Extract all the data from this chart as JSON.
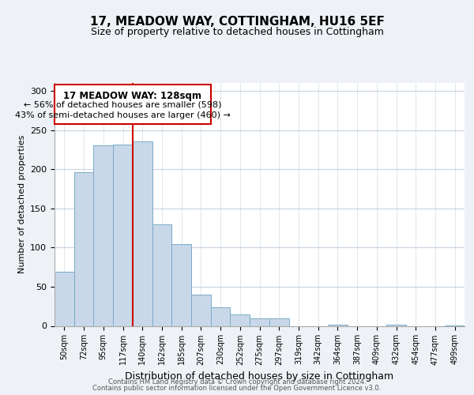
{
  "title": "17, MEADOW WAY, COTTINGHAM, HU16 5EF",
  "subtitle": "Size of property relative to detached houses in Cottingham",
  "xlabel": "Distribution of detached houses by size in Cottingham",
  "ylabel": "Number of detached properties",
  "categories": [
    "50sqm",
    "72sqm",
    "95sqm",
    "117sqm",
    "140sqm",
    "162sqm",
    "185sqm",
    "207sqm",
    "230sqm",
    "252sqm",
    "275sqm",
    "297sqm",
    "319sqm",
    "342sqm",
    "364sqm",
    "387sqm",
    "409sqm",
    "432sqm",
    "454sqm",
    "477sqm",
    "499sqm"
  ],
  "values": [
    69,
    196,
    230,
    231,
    235,
    130,
    104,
    40,
    24,
    15,
    10,
    10,
    0,
    0,
    2,
    0,
    0,
    2,
    0,
    0,
    1
  ],
  "bar_color": "#c8d8e8",
  "bar_edge_color": "#7aaac8",
  "vline_color": "#cc0000",
  "annotation_line1": "17 MEADOW WAY: 128sqm",
  "annotation_line2": "← 56% of detached houses are smaller (598)",
  "annotation_line3": "43% of semi-detached houses are larger (460) →",
  "annotation_box_edge": "#cc0000",
  "ylim": [
    0,
    310
  ],
  "yticks": [
    0,
    50,
    100,
    150,
    200,
    250,
    300
  ],
  "footnote_line1": "Contains HM Land Registry data © Crown copyright and database right 2024.",
  "footnote_line2": "Contains public sector information licensed under the Open Government Licence v3.0.",
  "background_color": "#eef2f6",
  "plot_bg_color": "#ffffff",
  "grid_color": "#c8d4e0",
  "title_fontsize": 11,
  "subtitle_fontsize": 9,
  "xlabel_fontsize": 9,
  "ylabel_fontsize": 8,
  "tick_fontsize": 7,
  "footnote_fontsize": 6,
  "vline_bar_index": 4
}
